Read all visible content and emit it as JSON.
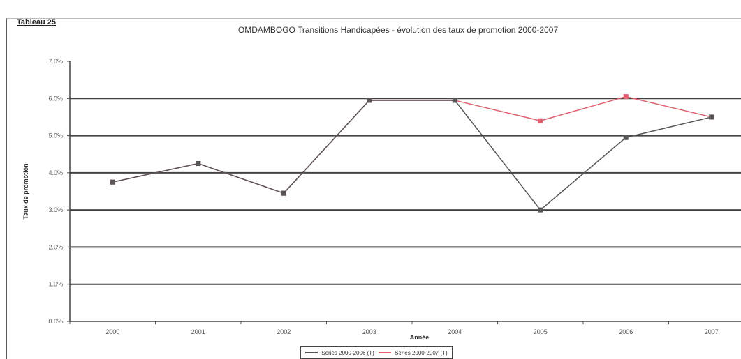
{
  "header": {
    "table_label": "Tableau 25",
    "title": "OMDAMBOGO Transitions Handicapées - évolution des taux de promotion 2000-2007"
  },
  "chart_data": {
    "type": "line",
    "title": "OMDAMBOGO Transitions Handicapées - évolution des taux de promotion 2000-2007",
    "xlabel": "Année",
    "ylabel": "Taux de promotion",
    "categories": [
      "2000",
      "2001",
      "2002",
      "2003",
      "2004",
      "2005",
      "2006",
      "2007"
    ],
    "y_ticks": [
      "0.0%",
      "1.0%",
      "2.0%",
      "3.0%",
      "4.0%",
      "5.0%",
      "6.0%",
      "7.0%"
    ],
    "ylim": [
      0,
      7
    ],
    "grid": true,
    "legend_position": "bottom",
    "series": [
      {
        "name": "Séries 2000-2006 (T)",
        "color": "#555555",
        "values": [
          3.75,
          4.25,
          3.45,
          5.95,
          5.95,
          3.0,
          4.95,
          5.5
        ]
      },
      {
        "name": "Séries 2000-2007 (T)",
        "color": "#e06070",
        "values": [
          3.75,
          4.25,
          3.45,
          5.95,
          5.95,
          5.4,
          6.05,
          5.5
        ]
      }
    ]
  }
}
